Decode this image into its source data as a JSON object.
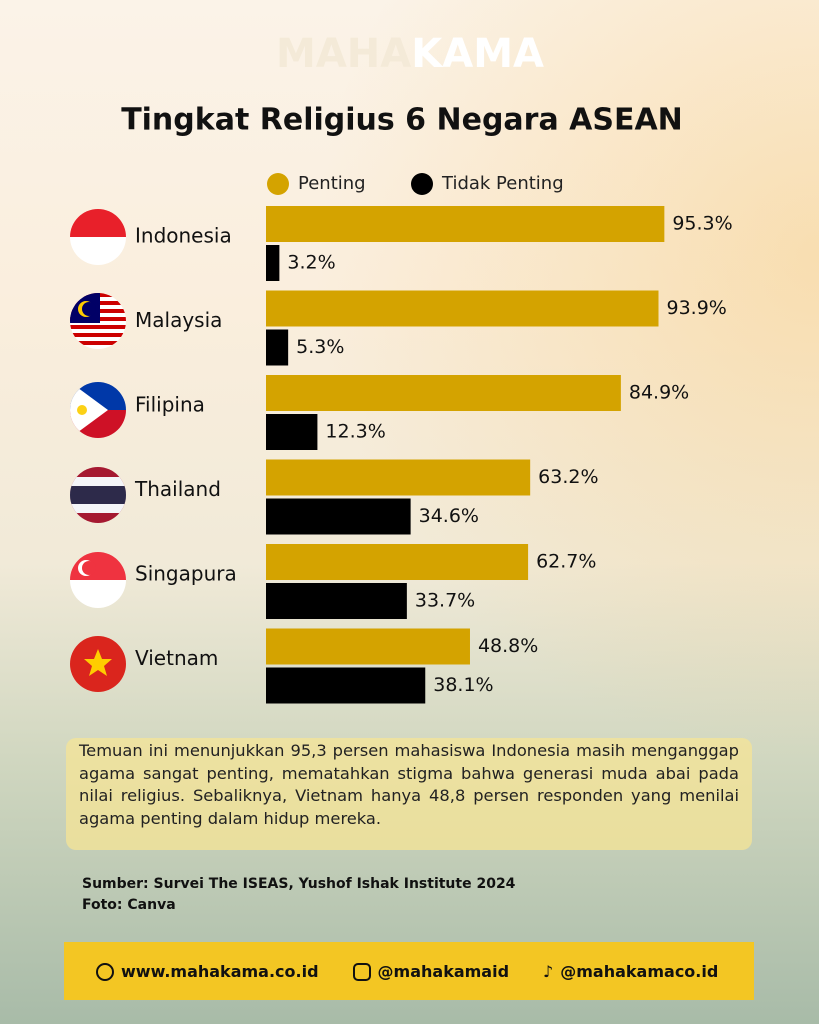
{
  "brand": {
    "part1": "MAHA",
    "part2": "KAMA"
  },
  "chart_data": {
    "type": "bar",
    "orientation": "horizontal",
    "title": "Tingkat Religius 6 Negara ASEAN",
    "categories": [
      "Indonesia",
      "Malaysia",
      "Filipina",
      "Thailand",
      "Singapura",
      "Vietnam"
    ],
    "xlim": [
      0,
      100
    ],
    "series": [
      {
        "name": "Penting",
        "color": "#d4a300",
        "values": [
          95.3,
          93.9,
          84.9,
          63.2,
          62.7,
          48.8
        ],
        "value_labels": [
          "95.3%",
          "93.9%",
          "84.9%",
          "63.2%",
          "62.7%",
          "48.8%"
        ]
      },
      {
        "name": "Tidak Penting",
        "color": "#000000",
        "values": [
          3.2,
          5.3,
          12.3,
          34.6,
          33.7,
          38.1
        ],
        "value_labels": [
          "3.2%",
          "5.3%",
          "12.3%",
          "34.6%",
          "33.7%",
          "38.1%"
        ]
      }
    ]
  },
  "description": "Temuan ini menunjukkan 95,3 persen mahasiswa Indonesia masih menganggap agama sangat penting, mematahkan stigma bahwa generasi muda  abai pada nilai religius. Sebaliknya, Vietnam hanya 48,8 persen responden yang menilai agama penting dalam hidup mereka.",
  "source": [
    "Sumber: Survei The ISEAS, Yushof Ishak Institute 2024",
    "Foto: Canva"
  ],
  "footer": {
    "website": "www.mahakama.co.id",
    "instagram": "@mahakamaid",
    "tiktok": "@mahakamaco.id"
  }
}
